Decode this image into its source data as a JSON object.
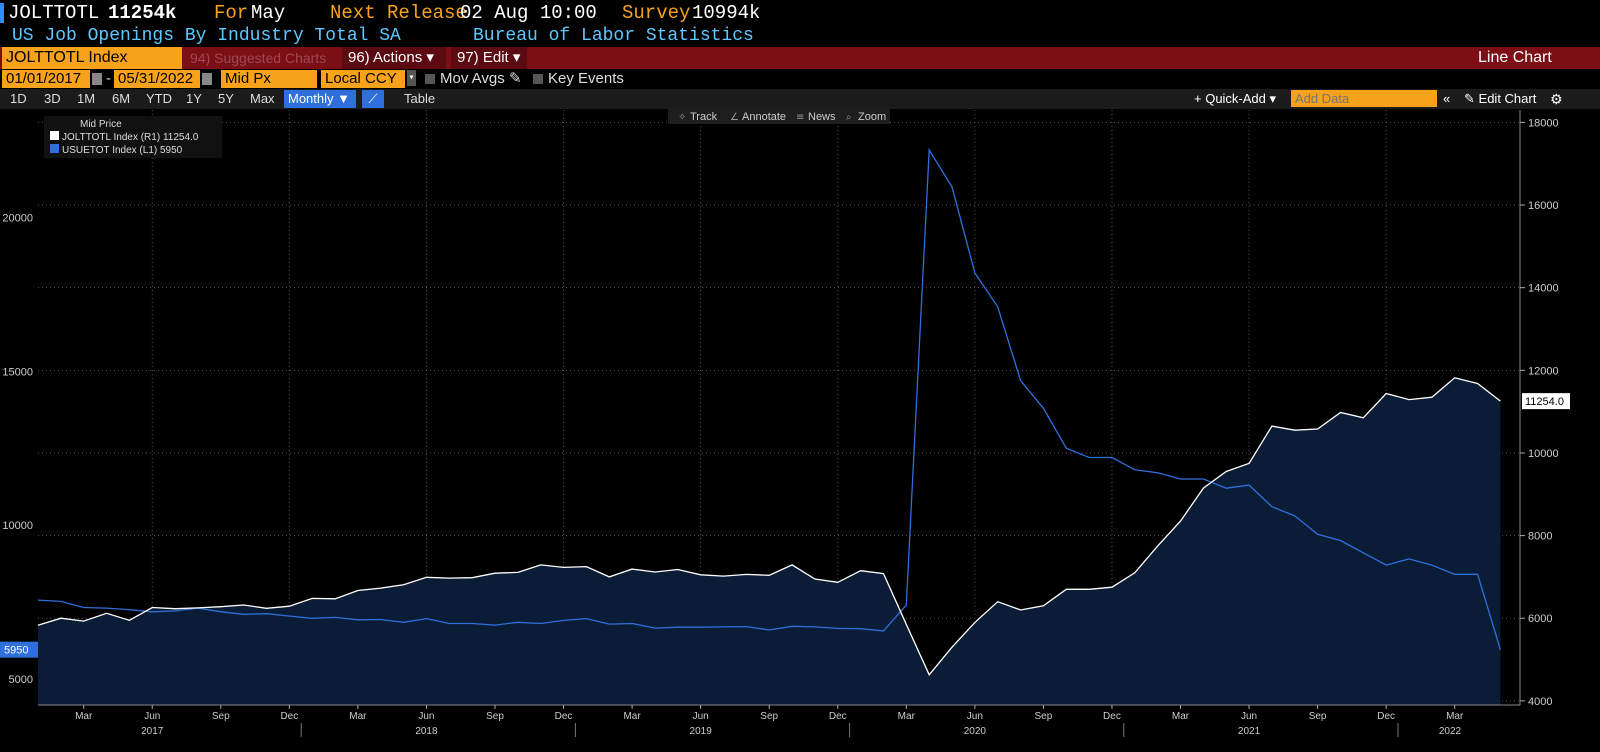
{
  "header": {
    "ticker": "JOLTTOTL",
    "value": "11254k",
    "for_label": "For",
    "for_value": "May",
    "next_release_label": "Next Release",
    "next_release_value": "02 Aug 10:00",
    "survey_label": "Survey",
    "survey_value": "10994k",
    "description": "US Job Openings By Industry Total SA",
    "source": "Bureau of Labor Statistics"
  },
  "toolbar": {
    "security": "JOLTTOTL Index",
    "suggested": "94) Suggested Charts",
    "actions": "96) Actions ▾",
    "edit": "97) Edit ▾",
    "chart_type": "Line Chart",
    "start_date": "01/01/2017",
    "end_date": "05/31/2022",
    "price_field": "Mid Px",
    "currency": "Local CCY",
    "mov_avgs": "Mov Avgs",
    "key_events": "Key Events",
    "periods": [
      "1D",
      "3D",
      "1M",
      "6M",
      "YTD",
      "1Y",
      "5Y",
      "Max"
    ],
    "frequency": "Monthly ▼",
    "table": "Table",
    "quick_add": "+ Quick-Add ▾",
    "add_data_placeholder": "Add Data",
    "edit_chart": "Edit Chart",
    "chart_tools": [
      "Track",
      "Annotate",
      "News",
      "Zoom"
    ]
  },
  "colors": {
    "accent_orange": "#f7a21b",
    "bar_red": "#7c0e16",
    "series_white": "#ffffff",
    "series_blue": "#2f6fdc",
    "fill": "#0b1d36"
  },
  "chart_data": {
    "type": "line",
    "legend_title": "Mid Price",
    "legend_position": "top-left",
    "x_start": "2017-01",
    "x_end": "2022-05",
    "x_month_labels": [
      "Mar",
      "Jun",
      "Sep",
      "Dec"
    ],
    "x_year_labels": [
      "2017",
      "2018",
      "2019",
      "2020",
      "2021",
      "2022"
    ],
    "series": [
      {
        "name": "JOLTTOTL Index (R1)",
        "legend_value": "11254.0",
        "axis": "right",
        "last_label": "11254.0",
        "values": [
          5830,
          6000,
          5930,
          6120,
          5950,
          6260,
          6230,
          6250,
          6280,
          6320,
          6240,
          6290,
          6480,
          6470,
          6670,
          6730,
          6810,
          6990,
          6970,
          6980,
          7090,
          7110,
          7290,
          7230,
          7250,
          7000,
          7190,
          7120,
          7180,
          7050,
          7020,
          7060,
          7040,
          7290,
          6950,
          6870,
          7150,
          7080,
          5850,
          4630,
          5300,
          5900,
          6400,
          6200,
          6300,
          6700,
          6700,
          6750,
          7100,
          7750,
          8350,
          9150,
          9550,
          9750,
          10650,
          10550,
          10580,
          10980,
          10850,
          11440,
          11290,
          11350,
          11820,
          11680,
          11254
        ]
      },
      {
        "name": "USUETOT Index (L1)",
        "legend_value": "5950",
        "axis": "left",
        "last_label": "5950",
        "values": [
          7560,
          7520,
          7320,
          7300,
          7250,
          7180,
          7210,
          7300,
          7180,
          7100,
          7120,
          7040,
          6970,
          7000,
          6920,
          6930,
          6840,
          6960,
          6800,
          6800,
          6750,
          6840,
          6800,
          6900,
          6960,
          6780,
          6800,
          6650,
          6680,
          6680,
          6690,
          6700,
          6590,
          6710,
          6690,
          6640,
          6630,
          6560,
          7400,
          22200,
          21000,
          18200,
          17100,
          14700,
          13800,
          12500,
          12200,
          12200,
          11800,
          11700,
          11500,
          11500,
          11200,
          11300,
          10600,
          10300,
          9700,
          9500,
          9100,
          8700,
          8900,
          8700,
          8400,
          8400,
          5950
        ]
      }
    ],
    "left_axis": {
      "ticks": [
        5000,
        10000,
        15000,
        20000
      ],
      "range": [
        4150,
        23500
      ]
    },
    "right_axis": {
      "ticks": [
        4000,
        6000,
        8000,
        10000,
        12000,
        14000,
        16000,
        18000
      ],
      "range": [
        3900,
        18300
      ]
    }
  }
}
